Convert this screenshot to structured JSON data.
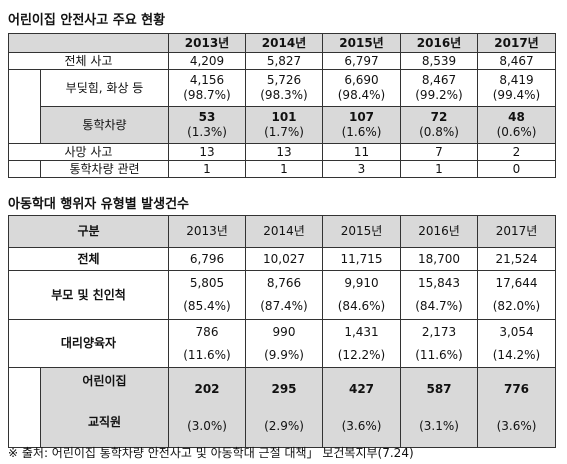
{
  "table1": {
    "title": "어린이집 안전사고 주요 현황",
    "years": [
      "2013년",
      "2014년",
      "2015년",
      "2016년",
      "2017년"
    ],
    "rows": [
      {
        "label": "전체 사고",
        "values": [
          "4,209",
          "5,827",
          "6,797",
          "8,539",
          "8,467"
        ]
      },
      {
        "label": "부딪힘, 화상 등",
        "values": [
          "4,156",
          "5,726",
          "6,690",
          "8,467",
          "8,419"
        ],
        "shares": [
          "(98.7%)",
          "(98.3%)",
          "(98.4%)",
          "(99.2%)",
          "(99.4%)"
        ]
      },
      {
        "label": "통학차량",
        "values": [
          "53",
          "101",
          "107",
          "72",
          "48"
        ],
        "shares": [
          "(1.3%)",
          "(1.7%)",
          "(1.6%)",
          "(0.8%)",
          "(0.6%)"
        ]
      },
      {
        "label": "사망 사고",
        "values": [
          "13",
          "13",
          "11",
          "7",
          "2"
        ]
      },
      {
        "label": "통학차량 관련",
        "values": [
          "1",
          "1",
          "3",
          "1",
          "0"
        ]
      }
    ]
  },
  "table2": {
    "title": "아동학대 행위자 유형별 발생건수",
    "corner": "구분",
    "years": [
      "2013년",
      "2014년",
      "2015년",
      "2016년",
      "2017년"
    ],
    "rows": [
      {
        "label": "전체",
        "values": [
          "6,796",
          "10,027",
          "11,715",
          "18,700",
          "21,524"
        ]
      },
      {
        "label": "부모 및 친인척",
        "values": [
          "5,805",
          "8,766",
          "9,910",
          "15,843",
          "17,644"
        ],
        "shares": [
          "(85.4%)",
          "(87.4%)",
          "(84.6%)",
          "(84.7%)",
          "(82.0%)"
        ]
      },
      {
        "label": "대리양육자",
        "values": [
          "786",
          "990",
          "1,431",
          "2,173",
          "3,054"
        ],
        "shares": [
          "(11.6%)",
          "(9.9%)",
          "(12.2%)",
          "(11.6%)",
          "(14.2%)"
        ]
      },
      {
        "label": [
          "어린이집",
          "교직원"
        ],
        "values": [
          "202",
          "295",
          "427",
          "587",
          "776"
        ],
        "shares": [
          "(3.0%)",
          "(2.9%)",
          "(3.6%)",
          "(3.1%)",
          "(3.6%)"
        ]
      }
    ]
  },
  "footnote": "※ 출처: 어린이집 통학차량 안전사고 및 아동학대 근절 대책」 보건복지부(7.24)"
}
